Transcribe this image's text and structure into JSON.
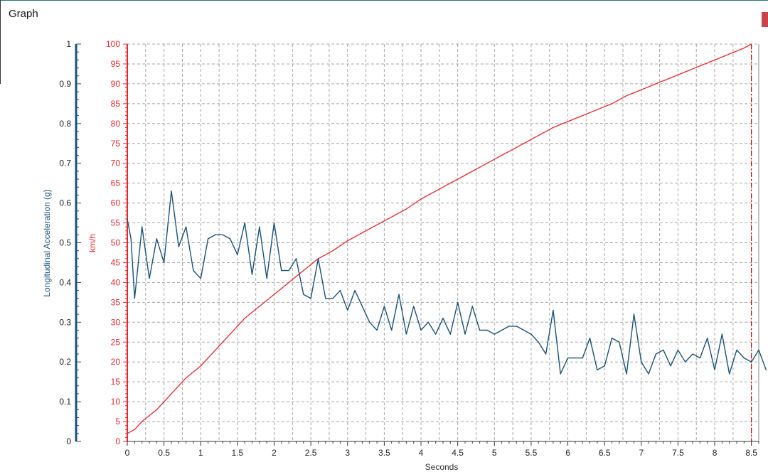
{
  "window": {
    "title": "Graph"
  },
  "colors": {
    "speed": "#e8262a",
    "accel": "#1b5277",
    "grid": "#a6a6a6"
  },
  "chart_data": {
    "type": "line",
    "xlabel": "Seconds",
    "xlim": [
      0,
      8.6
    ],
    "xticks": [
      0,
      0.5,
      1,
      1.5,
      2,
      2.5,
      3,
      3.5,
      4,
      4.5,
      5,
      5.5,
      6,
      6.5,
      7,
      7.5,
      8,
      8.5
    ],
    "xtick_labels": [
      "0",
      "0.5",
      "1",
      "1.5",
      "2",
      "2.5",
      "3",
      "3.5",
      "4",
      "4.5",
      "5",
      "5.5",
      "6",
      "6.5",
      "7",
      "7.5",
      "8",
      "8.5"
    ],
    "y_left": {
      "label": "Longitudinal Acceleration (g)",
      "lim": [
        0,
        1
      ],
      "ticks": [
        0,
        0.1,
        0.2,
        0.3,
        0.4,
        0.5,
        0.6,
        0.7,
        0.8,
        0.9,
        1
      ],
      "tick_labels": [
        "0",
        "0.1",
        "0.2",
        "0.3",
        "0.4",
        "0.5",
        "0.6",
        "0.7",
        "0.8",
        "0.9",
        "1"
      ]
    },
    "y_right": {
      "label": "km/h",
      "lim": [
        0,
        100
      ],
      "ticks": [
        0,
        5,
        10,
        15,
        20,
        25,
        30,
        35,
        40,
        45,
        50,
        55,
        60,
        65,
        70,
        75,
        80,
        85,
        90,
        95,
        100
      ],
      "tick_labels": [
        "0",
        "5",
        "10",
        "15",
        "20",
        "25",
        "30",
        "35",
        "40",
        "45",
        "50",
        "55",
        "60",
        "65",
        "70",
        "75",
        "80",
        "85",
        "90",
        "95",
        "100"
      ]
    },
    "grid": true,
    "marker_x": 8.5,
    "series": [
      {
        "axis": "right",
        "color": "#e8262a",
        "points": [
          [
            0,
            2
          ],
          [
            0.1,
            3
          ],
          [
            0.2,
            5
          ],
          [
            0.4,
            8
          ],
          [
            0.6,
            12
          ],
          [
            0.8,
            16
          ],
          [
            1,
            19
          ],
          [
            1.2,
            23
          ],
          [
            1.4,
            27
          ],
          [
            1.6,
            31
          ],
          [
            1.8,
            34
          ],
          [
            2,
            37
          ],
          [
            2.2,
            40
          ],
          [
            2.4,
            43
          ],
          [
            2.6,
            46
          ],
          [
            2.8,
            48
          ],
          [
            3,
            50.5
          ],
          [
            3.2,
            52.5
          ],
          [
            3.4,
            54.5
          ],
          [
            3.6,
            56.5
          ],
          [
            3.8,
            58.5
          ],
          [
            4,
            61
          ],
          [
            4.2,
            63
          ],
          [
            4.4,
            65
          ],
          [
            4.6,
            67
          ],
          [
            4.8,
            69
          ],
          [
            5,
            71
          ],
          [
            5.2,
            73
          ],
          [
            5.4,
            75
          ],
          [
            5.6,
            77
          ],
          [
            5.8,
            79
          ],
          [
            6,
            80.5
          ],
          [
            6.2,
            82
          ],
          [
            6.4,
            83.5
          ],
          [
            6.6,
            85
          ],
          [
            6.8,
            87
          ],
          [
            7,
            88.5
          ],
          [
            7.2,
            90
          ],
          [
            7.4,
            91.5
          ],
          [
            7.6,
            93
          ],
          [
            7.8,
            94.5
          ],
          [
            8,
            96
          ],
          [
            8.2,
            97.5
          ],
          [
            8.4,
            99
          ],
          [
            8.5,
            100
          ]
        ]
      },
      {
        "axis": "left",
        "color": "#1b5277",
        "points": [
          [
            0,
            0.56
          ],
          [
            0.05,
            0.51
          ],
          [
            0.1,
            0.36
          ],
          [
            0.2,
            0.54
          ],
          [
            0.3,
            0.41
          ],
          [
            0.4,
            0.51
          ],
          [
            0.5,
            0.45
          ],
          [
            0.6,
            0.63
          ],
          [
            0.7,
            0.49
          ],
          [
            0.8,
            0.54
          ],
          [
            0.9,
            0.43
          ],
          [
            1,
            0.41
          ],
          [
            1.1,
            0.51
          ],
          [
            1.2,
            0.52
          ],
          [
            1.3,
            0.52
          ],
          [
            1.4,
            0.51
          ],
          [
            1.5,
            0.47
          ],
          [
            1.6,
            0.55
          ],
          [
            1.7,
            0.42
          ],
          [
            1.8,
            0.54
          ],
          [
            1.9,
            0.41
          ],
          [
            2,
            0.55
          ],
          [
            2.1,
            0.43
          ],
          [
            2.2,
            0.43
          ],
          [
            2.3,
            0.46
          ],
          [
            2.4,
            0.37
          ],
          [
            2.5,
            0.36
          ],
          [
            2.6,
            0.46
          ],
          [
            2.7,
            0.36
          ],
          [
            2.8,
            0.36
          ],
          [
            2.9,
            0.38
          ],
          [
            3,
            0.33
          ],
          [
            3.1,
            0.38
          ],
          [
            3.2,
            0.34
          ],
          [
            3.3,
            0.3
          ],
          [
            3.4,
            0.28
          ],
          [
            3.5,
            0.34
          ],
          [
            3.6,
            0.28
          ],
          [
            3.7,
            0.37
          ],
          [
            3.8,
            0.27
          ],
          [
            3.9,
            0.34
          ],
          [
            4,
            0.28
          ],
          [
            4.1,
            0.3
          ],
          [
            4.2,
            0.27
          ],
          [
            4.3,
            0.31
          ],
          [
            4.4,
            0.27
          ],
          [
            4.5,
            0.35
          ],
          [
            4.6,
            0.27
          ],
          [
            4.7,
            0.34
          ],
          [
            4.8,
            0.28
          ],
          [
            4.9,
            0.28
          ],
          [
            5,
            0.27
          ],
          [
            5.1,
            0.28
          ],
          [
            5.2,
            0.29
          ],
          [
            5.3,
            0.29
          ],
          [
            5.4,
            0.28
          ],
          [
            5.5,
            0.27
          ],
          [
            5.6,
            0.25
          ],
          [
            5.7,
            0.22
          ],
          [
            5.8,
            0.33
          ],
          [
            5.9,
            0.17
          ],
          [
            6,
            0.21
          ],
          [
            6.1,
            0.21
          ],
          [
            6.2,
            0.21
          ],
          [
            6.3,
            0.26
          ],
          [
            6.4,
            0.18
          ],
          [
            6.5,
            0.19
          ],
          [
            6.6,
            0.26
          ],
          [
            6.7,
            0.25
          ],
          [
            6.8,
            0.17
          ],
          [
            6.9,
            0.32
          ],
          [
            7,
            0.2
          ],
          [
            7.1,
            0.17
          ],
          [
            7.2,
            0.22
          ],
          [
            7.3,
            0.23
          ],
          [
            7.4,
            0.19
          ],
          [
            7.5,
            0.23
          ],
          [
            7.6,
            0.2
          ],
          [
            7.7,
            0.22
          ],
          [
            7.8,
            0.21
          ],
          [
            7.9,
            0.26
          ],
          [
            8,
            0.18
          ],
          [
            8.1,
            0.27
          ],
          [
            8.2,
            0.17
          ],
          [
            8.3,
            0.23
          ],
          [
            8.4,
            0.21
          ],
          [
            8.5,
            0.2
          ],
          [
            8.6,
            0.23
          ],
          [
            8.7,
            0.18
          ]
        ]
      }
    ]
  }
}
